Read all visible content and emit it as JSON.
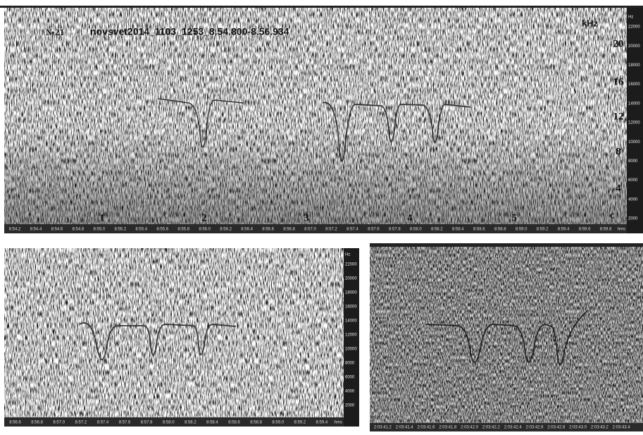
{
  "panel_main": {
    "number": "№21",
    "file": "novsvet2014_1103_1253_8.54.800-8.56.934",
    "khz_unit": "kHz",
    "khz_labels": [
      "20",
      "16",
      "12",
      "8",
      "4"
    ],
    "c_label": "c",
    "note_labels": [
      "1",
      "2",
      "3",
      "4",
      "5"
    ],
    "time_labels": [
      "8:54.2",
      "8:54.4",
      "8:54.6",
      "8:54.8",
      "8:55.0",
      "8:55.2",
      "8:55.4",
      "8:55.6",
      "8:55.8",
      "8:56.0",
      "8:56.2",
      "8:56.4",
      "8:56.6",
      "8:56.8",
      "8:57.0",
      "8:57.2",
      "8:57.4",
      "8:57.6",
      "8:57.8",
      "8:58.0",
      "8:58.2",
      "8:58.4",
      "8:58.6",
      "8:58.8",
      "8:59.0",
      "8:59.2",
      "8:59.4",
      "8:59.6",
      "8:59.8"
    ],
    "time_unit": "hms",
    "hz_unit": "Hz",
    "hz_labels": [
      "22000",
      "20000",
      "18000",
      "16000",
      "14000",
      "12000",
      "10000",
      "8000",
      "6000",
      "4000",
      "2000"
    ]
  },
  "panel_left": {
    "time_labels": [
      "8:56.6",
      "8:56.8",
      "8:57.0",
      "8:57.2",
      "8:57.4",
      "8:57.6",
      "8:57.8",
      "8:58.0",
      "8:58.2",
      "8:58.4",
      "8:58.6",
      "8:58.8",
      "8:59.0",
      "8:59.2",
      "8:59.4"
    ],
    "time_unit": "hms",
    "hz_unit": "Hz",
    "hz_labels": [
      "22000",
      "20000",
      "18000",
      "16000",
      "14000",
      "12000",
      "10000",
      "8000",
      "6000",
      "4000",
      "2000"
    ]
  },
  "panel_right": {
    "time_labels": [
      "2:03:41.2",
      "2:03:41.4",
      "2:03:41.6",
      "2:03:41.8",
      "2:03:42.0",
      "2:03:42.2",
      "2:03:42.4",
      "2:03:42.6",
      "2:03:42.8",
      "2:03:43.0",
      "2:03:43.2",
      "2:03:43.4"
    ]
  }
}
